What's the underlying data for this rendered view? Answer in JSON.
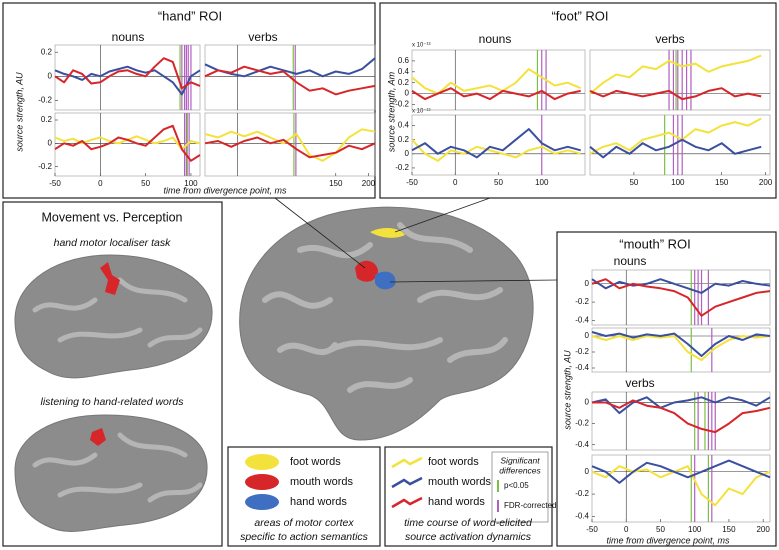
{
  "hand_roi": {
    "title": "“hand” ROI",
    "nouns": "nouns",
    "verbs": "verbs",
    "ylabel": "source strength, AU",
    "xlabel": "time from divergence point, ms"
  },
  "foot_roi": {
    "title": "“foot” ROI",
    "nouns": "nouns",
    "verbs": "verbs",
    "ylabel": "source strength, Am",
    "exponent": [
      "x 10⁻¹³",
      "x 10⁻¹³"
    ]
  },
  "mouth_roi": {
    "title": "“mouth” ROI",
    "nouns": "nouns",
    "verbs": "verbs",
    "ylabel": "source strength, AU",
    "xlabel": "time from divergence point, ms"
  },
  "movement_panel": {
    "title": "Movement vs. Perception",
    "task1": "hand motor localiser task",
    "task2": "listening to hand-related words"
  },
  "area_legend": {
    "items": [
      {
        "label": "foot words",
        "color": "#f4e23c"
      },
      {
        "label": "mouth words",
        "color": "#d7262a"
      },
      {
        "label": "hand words",
        "color": "#3f6fc0"
      }
    ],
    "caption": [
      "areas of motor cortex",
      "specific to action semantics"
    ]
  },
  "timecourse_legend": {
    "items": [
      {
        "label": "foot words",
        "color": "#f4e23c"
      },
      {
        "label": "mouth words",
        "color": "#3a4fa0"
      },
      {
        "label": "hand words",
        "color": "#d7262a"
      }
    ],
    "caption": [
      "time course of word-elicited",
      "source activation dynamics"
    ],
    "significance": {
      "title": [
        "Significant",
        "differences"
      ],
      "items": [
        {
          "label": "p<0.05",
          "color": "#7bc043"
        },
        {
          "label": "FDR-corrected",
          "color": "#b15fc0"
        }
      ]
    }
  },
  "chart_data": [
    {
      "type": "line",
      "xlim": [
        -50,
        110
      ],
      "ylim": [
        -0.28,
        0.26
      ],
      "yticks": [
        0.2,
        0,
        -0.2
      ],
      "x": [
        -50,
        -40,
        -30,
        -20,
        -10,
        0,
        10,
        20,
        30,
        40,
        50,
        60,
        70,
        80,
        90,
        100,
        110
      ],
      "series": [
        {
          "color": "#3a4fa0",
          "values": [
            0.05,
            0.02,
            0.0,
            -0.03,
            0.02,
            0.0,
            0.04,
            0.06,
            0.08,
            0.05,
            0.03,
            0.05,
            0.0,
            -0.05,
            -0.15,
            0.0,
            0.05
          ]
        },
        {
          "color": "#d7262a",
          "values": [
            0.0,
            -0.05,
            0.05,
            0.02,
            -0.06,
            -0.05,
            0.0,
            0.04,
            0.05,
            0.02,
            0.0,
            0.08,
            0.15,
            0.12,
            -0.1,
            -0.05,
            -0.08
          ]
        }
      ],
      "significance_lines": [
        {
          "x": 88,
          "color": "#7bc043"
        },
        {
          "x": 90,
          "color": "#b15fc0"
        },
        {
          "x": 93,
          "color": "#b15fc0"
        },
        {
          "x": 95,
          "color": "#b15fc0"
        },
        {
          "x": 97,
          "color": "#b15fc0"
        },
        {
          "x": 100,
          "color": "#b15fc0"
        }
      ]
    },
    {
      "type": "line",
      "xlim": [
        -50,
        210
      ],
      "ylim": [
        -0.28,
        0.26
      ],
      "x": [
        -50,
        -30,
        -10,
        10,
        30,
        50,
        70,
        90,
        110,
        130,
        150,
        170,
        190,
        210
      ],
      "series": [
        {
          "color": "#3a4fa0",
          "values": [
            0.1,
            0.05,
            0.02,
            0.0,
            0.04,
            0.08,
            0.05,
            0.02,
            0.05,
            0.0,
            0.04,
            0.02,
            0.06,
            0.15
          ]
        },
        {
          "color": "#d7262a",
          "values": [
            0.0,
            0.05,
            0.03,
            0.08,
            0.05,
            0.02,
            0.04,
            -0.05,
            -0.12,
            -0.1,
            -0.15,
            -0.12,
            -0.1,
            -0.08
          ]
        }
      ],
      "significance_lines": [
        {
          "x": 85,
          "color": "#7bc043"
        },
        {
          "x": 88,
          "color": "#b15fc0"
        }
      ]
    },
    {
      "type": "line",
      "xlim": [
        -50,
        110
      ],
      "ylim": [
        -0.28,
        0.26
      ],
      "yticks": [
        0.2,
        0,
        -0.2
      ],
      "xticks": [
        -50,
        0,
        50,
        100
      ],
      "x": [
        -50,
        -40,
        -30,
        -20,
        -10,
        0,
        10,
        20,
        30,
        40,
        50,
        60,
        70,
        80,
        90,
        100,
        110
      ],
      "series": [
        {
          "color": "#f4e23c",
          "values": [
            0.05,
            0.02,
            0.04,
            0.0,
            0.03,
            0.05,
            0.02,
            0.0,
            0.03,
            0.06,
            0.03,
            0.0,
            0.02,
            0.05,
            -0.05,
            0.02,
            0.0
          ]
        },
        {
          "color": "#d7262a",
          "values": [
            -0.05,
            0.0,
            -0.02,
            0.02,
            -0.05,
            -0.03,
            0.0,
            0.05,
            0.03,
            0.0,
            -0.02,
            0.05,
            0.12,
            0.15,
            -0.05,
            -0.15,
            -0.1
          ]
        }
      ],
      "significance_lines": [
        {
          "x": 93,
          "color": "#b15fc0"
        },
        {
          "x": 95,
          "color": "#b15fc0"
        },
        {
          "x": 96,
          "color": "#7bc043"
        },
        {
          "x": 98,
          "color": "#b15fc0"
        }
      ]
    },
    {
      "type": "line",
      "xlim": [
        -50,
        210
      ],
      "ylim": [
        -0.28,
        0.26
      ],
      "xticks": [
        150,
        200
      ],
      "x": [
        -50,
        -30,
        -10,
        10,
        30,
        50,
        70,
        90,
        110,
        130,
        150,
        170,
        190,
        210
      ],
      "series": [
        {
          "color": "#f4e23c",
          "values": [
            0.08,
            0.05,
            0.1,
            0.06,
            0.1,
            0.05,
            0.0,
            0.08,
            -0.1,
            -0.15,
            -0.08,
            0.05,
            0.12,
            0.1
          ]
        },
        {
          "color": "#d7262a",
          "values": [
            0.0,
            0.02,
            -0.03,
            0.02,
            0.05,
            0.0,
            0.03,
            -0.05,
            -0.12,
            -0.1,
            -0.08,
            -0.02,
            -0.05,
            0.0
          ]
        }
      ],
      "significance_lines": [
        {
          "x": 86,
          "color": "#7bc043"
        },
        {
          "x": 89,
          "color": "#b15fc0"
        }
      ]
    },
    {
      "type": "line",
      "xlim": [
        -50,
        150
      ],
      "ylim": [
        -0.3,
        0.8
      ],
      "yticks": [
        0.6,
        0.4,
        0.2,
        0,
        -0.2
      ],
      "x": [
        -50,
        -35,
        -20,
        -5,
        10,
        25,
        40,
        55,
        70,
        85,
        100,
        115,
        130,
        145
      ],
      "series": [
        {
          "color": "#f4e23c",
          "values": [
            0.3,
            0.1,
            0.0,
            0.2,
            0.05,
            0.1,
            0.15,
            0.05,
            0.2,
            0.45,
            0.3,
            0.15,
            0.2,
            0.1
          ]
        },
        {
          "color": "#d7262a",
          "values": [
            0.05,
            -0.1,
            0.0,
            0.1,
            -0.05,
            0.0,
            -0.1,
            0.05,
            0.0,
            -0.05,
            0.05,
            -0.1,
            0.0,
            0.05
          ]
        }
      ],
      "significance_lines": [
        {
          "x": 95,
          "color": "#7bc043"
        },
        {
          "x": 100,
          "color": "#b15fc0"
        },
        {
          "x": 105,
          "color": "#b15fc0"
        }
      ]
    },
    {
      "type": "line",
      "xlim": [
        0,
        205
      ],
      "ylim": [
        -0.3,
        0.8
      ],
      "x": [
        0,
        15,
        30,
        45,
        60,
        75,
        90,
        105,
        120,
        135,
        150,
        165,
        180,
        195
      ],
      "series": [
        {
          "color": "#f4e23c",
          "values": [
            0.0,
            0.2,
            0.35,
            0.3,
            0.5,
            0.45,
            0.6,
            0.5,
            0.55,
            0.4,
            0.5,
            0.55,
            0.6,
            0.7
          ]
        },
        {
          "color": "#d7262a",
          "values": [
            0.05,
            -0.05,
            0.05,
            0.0,
            -0.05,
            0.0,
            0.05,
            -0.1,
            -0.05,
            0.05,
            0.1,
            -0.05,
            0.0,
            -0.05
          ]
        }
      ],
      "significance_lines": [
        {
          "x": 90,
          "color": "#b15fc0"
        },
        {
          "x": 95,
          "color": "#b15fc0"
        },
        {
          "x": 98,
          "color": "#7bc043"
        },
        {
          "x": 100,
          "color": "#b15fc0"
        },
        {
          "x": 105,
          "color": "#b15fc0"
        },
        {
          "x": 110,
          "color": "#b15fc0"
        },
        {
          "x": 115,
          "color": "#b15fc0"
        }
      ]
    },
    {
      "type": "line",
      "xlim": [
        -50,
        150
      ],
      "ylim": [
        -0.3,
        0.55
      ],
      "yticks": [
        0.4,
        0.2,
        0,
        -0.2
      ],
      "xticks": [
        -50,
        0,
        50,
        100
      ],
      "x": [
        -50,
        -35,
        -20,
        -5,
        10,
        25,
        40,
        55,
        70,
        85,
        100,
        115,
        130,
        145
      ],
      "series": [
        {
          "color": "#f4e23c",
          "values": [
            0.2,
            0.0,
            -0.1,
            0.05,
            0.0,
            0.1,
            0.05,
            0.0,
            -0.05,
            0.05,
            0.1,
            0.0,
            0.05,
            0.0
          ]
        },
        {
          "color": "#3a4fa0",
          "values": [
            0.05,
            0.15,
            0.0,
            0.1,
            0.05,
            -0.05,
            0.1,
            0.05,
            0.2,
            0.35,
            0.15,
            0.05,
            0.1,
            0.05
          ]
        }
      ],
      "significance_lines": [
        {
          "x": 100,
          "color": "#b15fc0"
        }
      ]
    },
    {
      "type": "line",
      "xlim": [
        0,
        205
      ],
      "ylim": [
        -0.3,
        0.55
      ],
      "xticks": [
        50,
        100,
        150,
        200
      ],
      "x": [
        0,
        15,
        30,
        45,
        60,
        75,
        90,
        105,
        120,
        135,
        150,
        165,
        180,
        195
      ],
      "series": [
        {
          "color": "#f4e23c",
          "values": [
            0.0,
            0.1,
            0.15,
            0.05,
            0.2,
            0.25,
            0.3,
            0.2,
            0.35,
            0.3,
            0.4,
            0.45,
            0.4,
            0.5
          ]
        },
        {
          "color": "#3a4fa0",
          "values": [
            0.1,
            -0.05,
            0.1,
            0.0,
            0.15,
            0.05,
            0.1,
            0.2,
            0.1,
            0.05,
            0.15,
            0.0,
            0.05,
            0.1
          ]
        }
      ],
      "significance_lines": [
        {
          "x": 85,
          "color": "#7bc043"
        },
        {
          "x": 95,
          "color": "#b15fc0"
        },
        {
          "x": 100,
          "color": "#b15fc0"
        },
        {
          "x": 105,
          "color": "#b15fc0"
        }
      ]
    },
    {
      "type": "line",
      "xlim": [
        -50,
        210
      ],
      "ylim": [
        -0.45,
        0.15
      ],
      "yticks": [
        0,
        -0.2,
        -0.4
      ],
      "x": [
        -50,
        -30,
        -10,
        10,
        30,
        50,
        70,
        90,
        110,
        130,
        150,
        170,
        190,
        210
      ],
      "series": [
        {
          "color": "#3a4fa0",
          "values": [
            0.05,
            -0.05,
            0.02,
            -0.02,
            0.0,
            0.05,
            0.0,
            -0.05,
            -0.1,
            0.0,
            -0.02,
            0.03,
            0.0,
            -0.02
          ]
        },
        {
          "color": "#d7262a",
          "values": [
            0.0,
            0.05,
            -0.05,
            0.0,
            -0.03,
            -0.05,
            -0.08,
            -0.15,
            -0.35,
            -0.25,
            -0.2,
            -0.15,
            -0.1,
            -0.08
          ]
        }
      ],
      "significance_lines": [
        {
          "x": 95,
          "color": "#7bc043"
        },
        {
          "x": 100,
          "color": "#b15fc0"
        },
        {
          "x": 105,
          "color": "#b15fc0"
        },
        {
          "x": 110,
          "color": "#b15fc0"
        },
        {
          "x": 120,
          "color": "#b15fc0"
        }
      ]
    },
    {
      "type": "line",
      "xlim": [
        -50,
        210
      ],
      "ylim": [
        -0.45,
        0.1
      ],
      "yticks": [
        0,
        -0.2,
        -0.4
      ],
      "x": [
        -50,
        -30,
        -10,
        10,
        30,
        50,
        70,
        90,
        110,
        130,
        150,
        170,
        190,
        210
      ],
      "series": [
        {
          "color": "#f4e23c",
          "values": [
            0.0,
            -0.05,
            0.0,
            -0.05,
            0.0,
            -0.02,
            0.0,
            -0.2,
            -0.3,
            -0.15,
            -0.05,
            0.0,
            -0.02,
            0.0
          ]
        },
        {
          "color": "#3a4fa0",
          "values": [
            0.05,
            0.0,
            0.03,
            -0.02,
            0.02,
            0.0,
            0.03,
            -0.1,
            -0.25,
            -0.1,
            0.0,
            -0.05,
            0.02,
            0.0
          ]
        }
      ],
      "significance_lines": [
        {
          "x": 95,
          "color": "#7bc043"
        },
        {
          "x": 125,
          "color": "#b15fc0"
        }
      ]
    },
    {
      "type": "line",
      "xlim": [
        -50,
        210
      ],
      "ylim": [
        -0.45,
        0.1
      ],
      "yticks": [
        0,
        -0.2,
        -0.4
      ],
      "x": [
        -50,
        -30,
        -10,
        10,
        30,
        50,
        70,
        90,
        110,
        130,
        150,
        170,
        190,
        210
      ],
      "series": [
        {
          "color": "#3a4fa0",
          "values": [
            0.0,
            0.03,
            -0.1,
            0.0,
            0.05,
            -0.05,
            0.0,
            0.02,
            0.05,
            0.0,
            0.05,
            0.02,
            -0.03,
            0.05
          ]
        },
        {
          "color": "#d7262a",
          "values": [
            0.0,
            0.0,
            -0.05,
            0.02,
            -0.03,
            -0.05,
            -0.1,
            -0.2,
            -0.25,
            -0.28,
            -0.2,
            -0.1,
            -0.08,
            -0.05
          ]
        }
      ],
      "significance_lines": [
        {
          "x": 100,
          "color": "#7bc043"
        },
        {
          "x": 105,
          "color": "#b15fc0"
        },
        {
          "x": 115,
          "color": "#7bc043"
        },
        {
          "x": 120,
          "color": "#b15fc0"
        },
        {
          "x": 125,
          "color": "#b15fc0"
        },
        {
          "x": 130,
          "color": "#b15fc0"
        }
      ]
    },
    {
      "type": "line",
      "xlim": [
        -50,
        210
      ],
      "ylim": [
        -0.45,
        0.15
      ],
      "yticks": [
        0,
        -0.2,
        -0.4
      ],
      "xticks": [
        -50,
        0,
        50,
        100,
        150,
        200
      ],
      "x": [
        -50,
        -30,
        -10,
        10,
        30,
        50,
        70,
        90,
        110,
        130,
        150,
        170,
        190,
        210
      ],
      "series": [
        {
          "color": "#f4e23c",
          "values": [
            0.0,
            -0.05,
            0.05,
            0.0,
            0.02,
            -0.05,
            0.0,
            0.05,
            -0.2,
            -0.3,
            -0.15,
            -0.2,
            -0.05,
            0.0
          ]
        },
        {
          "color": "#3a4fa0",
          "values": [
            0.05,
            0.0,
            -0.1,
            0.0,
            0.08,
            0.05,
            0.0,
            -0.05,
            0.0,
            0.05,
            0.1,
            0.05,
            0.0,
            -0.05
          ]
        }
      ],
      "significance_lines": [
        {
          "x": 95,
          "color": "#7bc043"
        },
        {
          "x": 100,
          "color": "#b15fc0"
        },
        {
          "x": 120,
          "color": "#7bc043"
        },
        {
          "x": 125,
          "color": "#b15fc0"
        }
      ]
    }
  ]
}
